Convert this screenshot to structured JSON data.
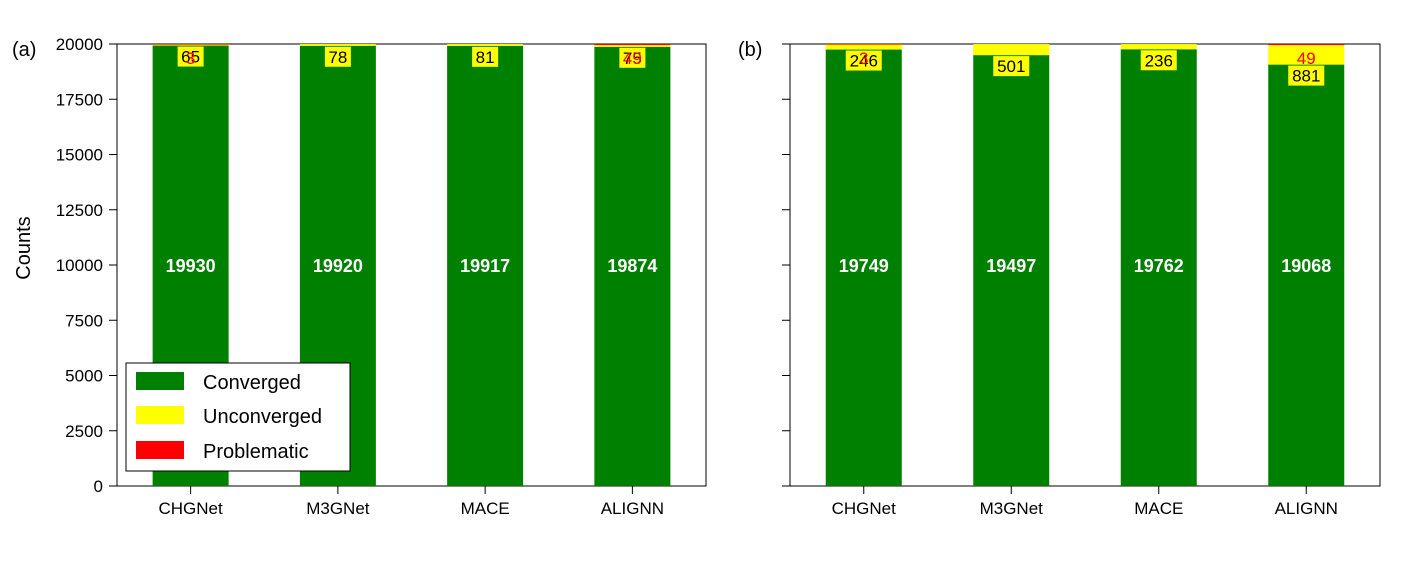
{
  "figure": {
    "ylabel": "Counts"
  },
  "legend": {
    "position": "bottom-left",
    "entries": [
      {
        "label": "Converged",
        "color": "#008000"
      },
      {
        "label": "Unconverged",
        "color": "#ffff00"
      },
      {
        "label": "Problematic",
        "color": "#ff0000"
      }
    ]
  },
  "chart_data": [
    {
      "type": "bar",
      "stacked": true,
      "panel_label": "(a)",
      "categories": [
        "CHGNet",
        "M3GNet",
        "MACE",
        "ALIGNN"
      ],
      "ylim": [
        0,
        20000
      ],
      "yticks": [
        0,
        2500,
        5000,
        7500,
        10000,
        12500,
        15000,
        17500,
        20000
      ],
      "ylabel": "Counts",
      "legend": "bottom-left",
      "series": [
        {
          "name": "Converged",
          "color": "#008000",
          "values": [
            19930,
            19920,
            19917,
            19874
          ]
        },
        {
          "name": "Unconverged",
          "color": "#ffff00",
          "values": [
            65,
            78,
            81,
            75
          ]
        },
        {
          "name": "Problematic",
          "color": "#ff0000",
          "values": [
            3,
            0,
            0,
            49
          ]
        }
      ],
      "data_labels": {
        "Converged": [
          "19930",
          "19920",
          "19917",
          "19874"
        ],
        "Unconverged": [
          "65",
          "78",
          "81",
          "75"
        ],
        "Problematic": [
          "3",
          "",
          "",
          "49"
        ]
      }
    },
    {
      "type": "bar",
      "stacked": true,
      "panel_label": "(b)",
      "categories": [
        "CHGNet",
        "M3GNet",
        "MACE",
        "ALIGNN"
      ],
      "ylim": [
        0,
        20000
      ],
      "yticks": [
        0,
        2500,
        5000,
        7500,
        10000,
        12500,
        15000,
        17500,
        20000
      ],
      "show_tick_labels": false,
      "series": [
        {
          "name": "Converged",
          "color": "#008000",
          "values": [
            19749,
            19497,
            19762,
            19068
          ]
        },
        {
          "name": "Unconverged",
          "color": "#ffff00",
          "values": [
            246,
            501,
            236,
            881
          ]
        },
        {
          "name": "Problematic",
          "color": "#ff0000",
          "values": [
            3,
            0,
            0,
            49
          ]
        }
      ],
      "data_labels": {
        "Converged": [
          "19749",
          "19497",
          "19762",
          "19068"
        ],
        "Unconverged": [
          "246",
          "501",
          "236",
          "881"
        ],
        "Problematic": [
          "3",
          "",
          "",
          "49"
        ]
      }
    }
  ]
}
